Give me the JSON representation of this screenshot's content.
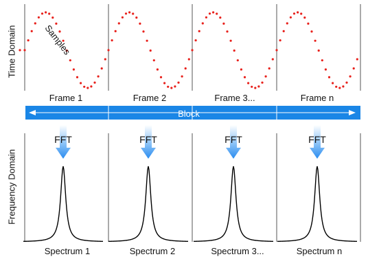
{
  "axes": {
    "time_domain": "Time Domain",
    "frequency_domain": "Frequency Domain"
  },
  "samples_label": "Samples",
  "block_label": "Block",
  "fft_label": "FFT",
  "frames": [
    {
      "label": "Frame 1",
      "spectrum": "Spectrum 1"
    },
    {
      "label": "Frame 2",
      "spectrum": "Spectrum 2"
    },
    {
      "label": "Frame 3...",
      "spectrum": "Spectrum 3..."
    },
    {
      "label": "Frame n",
      "spectrum": "Spectrum n"
    }
  ],
  "colors": {
    "sample_dot": "#e8211c",
    "block_bar": "#1a86e6",
    "fft_arrow": "#2a8cf0",
    "curve": "#000000",
    "divider": "#555555"
  }
}
